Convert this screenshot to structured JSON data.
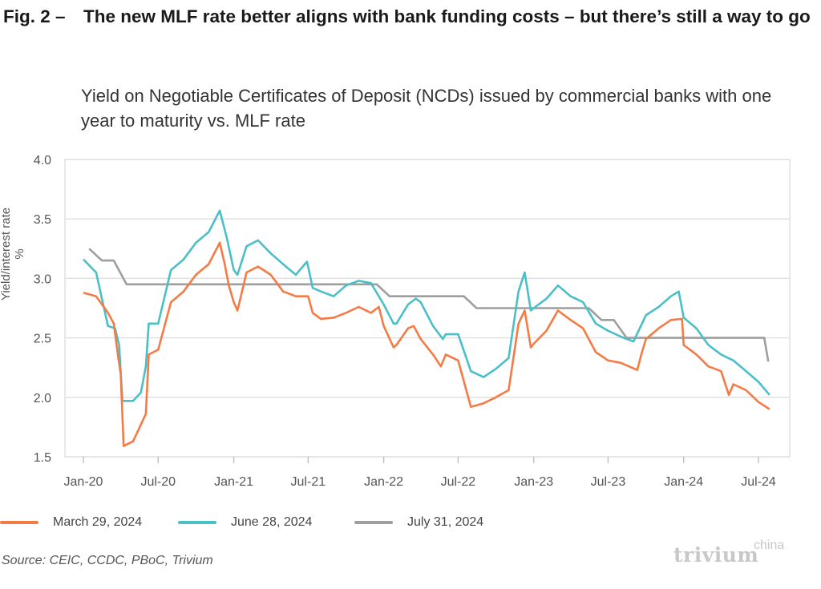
{
  "header": {
    "fig_number": "Fig. 2 –",
    "title": "The new MLF rate better aligns with bank funding costs – but there’s still a way to go",
    "subtitle": "Yield on Negotiable Certificates of Deposit (NCDs) issued by commercial banks with one year to maturity vs. MLF rate"
  },
  "footer": {
    "source": "Source: CEIC, CCDC, PBoC, Trivium",
    "logo_main": "trivium",
    "logo_sup": "china"
  },
  "chart_data": {
    "type": "line",
    "title": "",
    "xlabel": "",
    "ylabel": "Yield/interest rate %",
    "ylim": [
      1.5,
      4.0
    ],
    "yticks": [
      "1.5",
      "2.0",
      "2.5",
      "3.0",
      "3.5",
      "4.0"
    ],
    "xticks": [
      {
        "label": "Jan-20",
        "date": "2020-01-01"
      },
      {
        "label": "Jul-20",
        "date": "2020-07-01"
      },
      {
        "label": "Jan-21",
        "date": "2021-01-01"
      },
      {
        "label": "Jul-21",
        "date": "2021-07-01"
      },
      {
        "label": "Jan-22",
        "date": "2022-01-01"
      },
      {
        "label": "Jul-22",
        "date": "2022-07-01"
      },
      {
        "label": "Jan-23",
        "date": "2023-01-01"
      },
      {
        "label": "Jul-23",
        "date": "2023-07-01"
      },
      {
        "label": "Jan-24",
        "date": "2024-01-01"
      },
      {
        "label": "Jul-24",
        "date": "2024-07-01"
      }
    ],
    "grid": "horizontal",
    "legend_position": "bottom",
    "series": [
      {
        "name": "March 29, 2024",
        "color": "#F47B45",
        "points": [
          [
            "2020-01-01",
            2.88
          ],
          [
            "2020-02-01",
            2.85
          ],
          [
            "2020-03-01",
            2.71
          ],
          [
            "2020-03-15",
            2.62
          ],
          [
            "2020-03-25",
            2.36
          ],
          [
            "2020-04-01",
            2.19
          ],
          [
            "2020-04-08",
            1.59
          ],
          [
            "2020-05-01",
            1.63
          ],
          [
            "2020-06-01",
            1.86
          ],
          [
            "2020-06-08",
            2.36
          ],
          [
            "2020-07-01",
            2.4
          ],
          [
            "2020-08-01",
            2.8
          ],
          [
            "2020-09-01",
            2.89
          ],
          [
            "2020-10-01",
            3.03
          ],
          [
            "2020-11-01",
            3.12
          ],
          [
            "2020-11-28",
            3.3
          ],
          [
            "2020-12-10",
            3.12
          ],
          [
            "2020-12-20",
            2.94
          ],
          [
            "2021-01-01",
            2.8
          ],
          [
            "2021-01-10",
            2.73
          ],
          [
            "2021-02-01",
            3.05
          ],
          [
            "2021-03-01",
            3.1
          ],
          [
            "2021-04-01",
            3.03
          ],
          [
            "2021-05-01",
            2.89
          ],
          [
            "2021-06-01",
            2.85
          ],
          [
            "2021-07-01",
            2.85
          ],
          [
            "2021-07-12",
            2.71
          ],
          [
            "2021-08-01",
            2.66
          ],
          [
            "2021-09-01",
            2.67
          ],
          [
            "2021-10-01",
            2.71
          ],
          [
            "2021-11-01",
            2.76
          ],
          [
            "2021-12-01",
            2.71
          ],
          [
            "2021-12-20",
            2.76
          ],
          [
            "2022-01-01",
            2.6
          ],
          [
            "2022-01-25",
            2.42
          ],
          [
            "2022-02-01",
            2.44
          ],
          [
            "2022-03-01",
            2.58
          ],
          [
            "2022-03-15",
            2.6
          ],
          [
            "2022-04-01",
            2.49
          ],
          [
            "2022-05-01",
            2.36
          ],
          [
            "2022-05-20",
            2.26
          ],
          [
            "2022-06-01",
            2.36
          ],
          [
            "2022-07-01",
            2.31
          ],
          [
            "2022-08-01",
            1.92
          ],
          [
            "2022-09-01",
            1.95
          ],
          [
            "2022-10-01",
            2.0
          ],
          [
            "2022-11-01",
            2.06
          ],
          [
            "2022-11-25",
            2.62
          ],
          [
            "2022-12-10",
            2.73
          ],
          [
            "2022-12-25",
            2.42
          ],
          [
            "2023-01-01",
            2.45
          ],
          [
            "2023-02-01",
            2.56
          ],
          [
            "2023-03-01",
            2.73
          ],
          [
            "2023-04-01",
            2.65
          ],
          [
            "2023-05-01",
            2.58
          ],
          [
            "2023-06-01",
            2.38
          ],
          [
            "2023-07-01",
            2.31
          ],
          [
            "2023-08-01",
            2.29
          ],
          [
            "2023-09-10",
            2.23
          ],
          [
            "2023-09-20",
            2.36
          ],
          [
            "2023-10-01",
            2.49
          ],
          [
            "2023-11-01",
            2.58
          ],
          [
            "2023-12-01",
            2.65
          ],
          [
            "2023-12-28",
            2.66
          ],
          [
            "2024-01-01",
            2.44
          ],
          [
            "2024-02-01",
            2.36
          ],
          [
            "2024-03-01",
            2.26
          ],
          [
            "2024-04-01",
            2.22
          ],
          [
            "2024-04-20",
            2.02
          ],
          [
            "2024-05-01",
            2.11
          ],
          [
            "2024-06-01",
            2.06
          ],
          [
            "2024-07-01",
            1.96
          ],
          [
            "2024-07-28",
            1.9
          ]
        ]
      },
      {
        "name": "June 28, 2024",
        "color": "#4BBFC8",
        "points": [
          [
            "2020-01-01",
            3.16
          ],
          [
            "2020-02-01",
            3.05
          ],
          [
            "2020-03-01",
            2.6
          ],
          [
            "2020-03-18",
            2.58
          ],
          [
            "2020-03-28",
            2.44
          ],
          [
            "2020-04-05",
            1.97
          ],
          [
            "2020-05-01",
            1.97
          ],
          [
            "2020-05-20",
            2.04
          ],
          [
            "2020-06-01",
            2.26
          ],
          [
            "2020-06-08",
            2.62
          ],
          [
            "2020-07-01",
            2.62
          ],
          [
            "2020-08-01",
            3.07
          ],
          [
            "2020-09-01",
            3.16
          ],
          [
            "2020-10-01",
            3.3
          ],
          [
            "2020-11-01",
            3.39
          ],
          [
            "2020-11-28",
            3.57
          ],
          [
            "2020-12-15",
            3.34
          ],
          [
            "2021-01-01",
            3.07
          ],
          [
            "2021-01-10",
            3.03
          ],
          [
            "2021-02-01",
            3.27
          ],
          [
            "2021-03-01",
            3.32
          ],
          [
            "2021-04-01",
            3.21
          ],
          [
            "2021-05-01",
            3.12
          ],
          [
            "2021-06-01",
            3.03
          ],
          [
            "2021-06-28",
            3.14
          ],
          [
            "2021-07-01",
            3.1
          ],
          [
            "2021-07-12",
            2.92
          ],
          [
            "2021-08-01",
            2.89
          ],
          [
            "2021-09-01",
            2.85
          ],
          [
            "2021-10-01",
            2.94
          ],
          [
            "2021-11-01",
            2.98
          ],
          [
            "2021-12-01",
            2.96
          ],
          [
            "2022-01-01",
            2.78
          ],
          [
            "2022-01-25",
            2.62
          ],
          [
            "2022-02-01",
            2.62
          ],
          [
            "2022-03-01",
            2.78
          ],
          [
            "2022-03-20",
            2.83
          ],
          [
            "2022-04-01",
            2.8
          ],
          [
            "2022-05-01",
            2.6
          ],
          [
            "2022-05-25",
            2.49
          ],
          [
            "2022-06-01",
            2.53
          ],
          [
            "2022-07-01",
            2.53
          ],
          [
            "2022-08-01",
            2.22
          ],
          [
            "2022-09-01",
            2.17
          ],
          [
            "2022-10-01",
            2.24
          ],
          [
            "2022-11-01",
            2.33
          ],
          [
            "2022-11-25",
            2.89
          ],
          [
            "2022-12-10",
            3.05
          ],
          [
            "2022-12-25",
            2.73
          ],
          [
            "2023-01-01",
            2.75
          ],
          [
            "2023-02-01",
            2.83
          ],
          [
            "2023-03-01",
            2.94
          ],
          [
            "2023-04-01",
            2.85
          ],
          [
            "2023-05-01",
            2.8
          ],
          [
            "2023-06-01",
            2.62
          ],
          [
            "2023-07-01",
            2.56
          ],
          [
            "2023-08-01",
            2.51
          ],
          [
            "2023-09-01",
            2.47
          ],
          [
            "2023-10-01",
            2.69
          ],
          [
            "2023-11-01",
            2.76
          ],
          [
            "2023-12-01",
            2.85
          ],
          [
            "2023-12-20",
            2.89
          ],
          [
            "2024-01-01",
            2.67
          ],
          [
            "2024-02-01",
            2.58
          ],
          [
            "2024-03-01",
            2.44
          ],
          [
            "2024-04-01",
            2.36
          ],
          [
            "2024-05-01",
            2.31
          ],
          [
            "2024-06-01",
            2.22
          ],
          [
            "2024-07-01",
            2.13
          ],
          [
            "2024-07-28",
            2.02
          ]
        ]
      },
      {
        "name": "July 31, 2024",
        "color": "#9E9E9E",
        "points": [
          [
            "2020-01-15",
            3.25
          ],
          [
            "2020-02-15",
            3.15
          ],
          [
            "2020-03-15",
            3.15
          ],
          [
            "2020-04-15",
            2.95
          ],
          [
            "2021-12-15",
            2.95
          ],
          [
            "2022-01-15",
            2.85
          ],
          [
            "2022-07-15",
            2.85
          ],
          [
            "2022-08-15",
            2.75
          ],
          [
            "2023-05-15",
            2.75
          ],
          [
            "2023-06-15",
            2.65
          ],
          [
            "2023-07-15",
            2.65
          ],
          [
            "2023-08-15",
            2.5
          ],
          [
            "2024-07-15",
            2.5
          ],
          [
            "2024-07-25",
            2.3
          ]
        ]
      }
    ]
  }
}
